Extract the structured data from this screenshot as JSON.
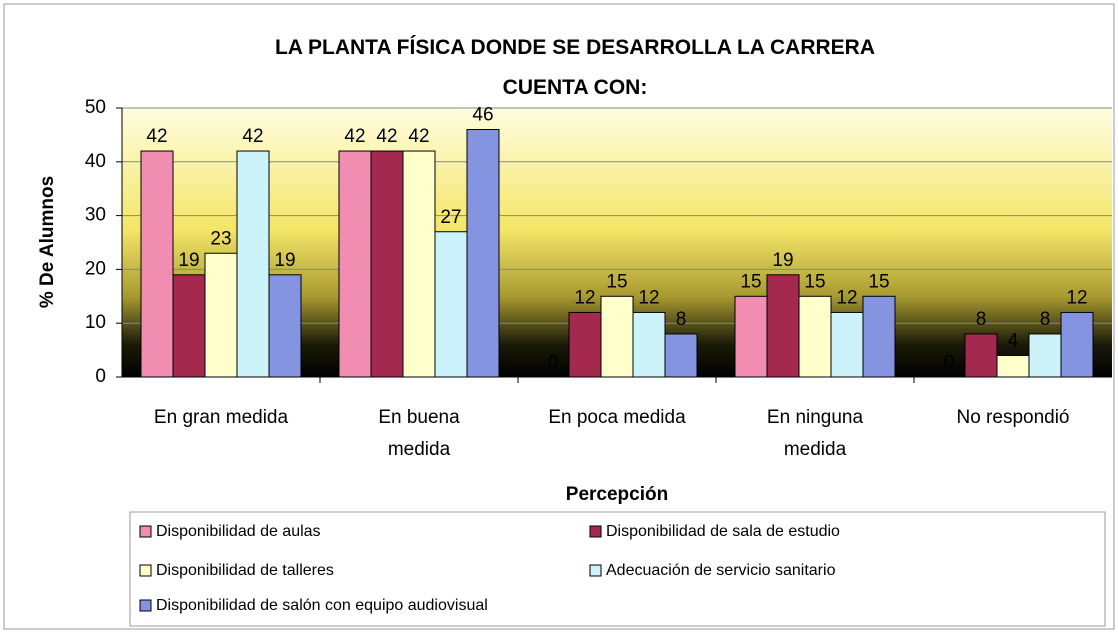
{
  "chart_data": {
    "type": "bar",
    "title": "LA PLANTA FÍSICA DONDE SE DESARROLLA LA CARRERA CUENTA CON:",
    "y_label": "% De Alumnos",
    "x_label": "Percepción",
    "categories": [
      "En gran medida",
      "En buena medida",
      "En poca medida",
      "En ninguna medida",
      "No respondió"
    ],
    "series": [
      {
        "name": "Disponibilidad de aulas",
        "color": "#f28db2",
        "values": [
          42,
          42,
          0,
          15,
          0
        ]
      },
      {
        "name": "Disponibilidad de sala de estudio",
        "color": "#a3294f",
        "values": [
          19,
          42,
          12,
          19,
          8
        ]
      },
      {
        "name": "Disponibilidad de talleres",
        "color": "#ffffcc",
        "values": [
          23,
          42,
          15,
          15,
          4
        ]
      },
      {
        "name": "Adecuación de servicio sanitario",
        "color": "#ccf2fa",
        "values": [
          42,
          27,
          12,
          12,
          8
        ]
      },
      {
        "name": "Disponibilidad de salón con equipo audiovisual",
        "color": "#8494e0",
        "values": [
          19,
          46,
          8,
          15,
          12
        ]
      }
    ],
    "ylim": [
      0,
      50
    ],
    "yticks": [
      0,
      10,
      20,
      30,
      40,
      50
    ],
    "grid": true,
    "legend": "bottom"
  }
}
